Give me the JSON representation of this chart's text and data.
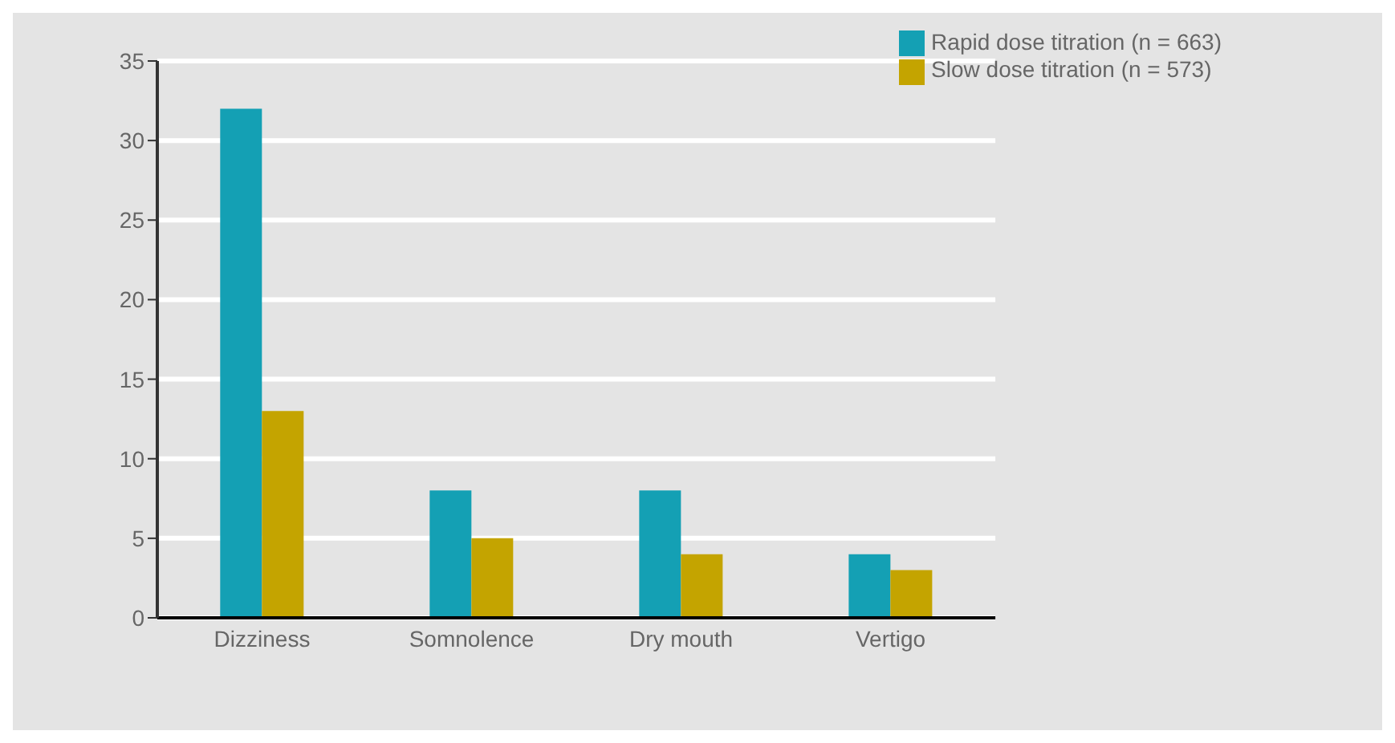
{
  "chart_data": {
    "type": "bar",
    "categories": [
      "Dizziness",
      "Somnolence",
      "Dry mouth",
      "Vertigo"
    ],
    "series": [
      {
        "name": "Rapid dose titration (n = 663)",
        "color": "#14a0b4",
        "values": [
          32,
          8,
          8,
          4
        ]
      },
      {
        "name": "Slow dose titration (n = 573)",
        "color": "#c4a400",
        "values": [
          13,
          5,
          4,
          3
        ]
      }
    ],
    "ylim": [
      0,
      35
    ],
    "yticks": [
      0,
      5,
      10,
      15,
      20,
      25,
      30,
      35
    ],
    "grid": "y",
    "legend": "top right"
  }
}
